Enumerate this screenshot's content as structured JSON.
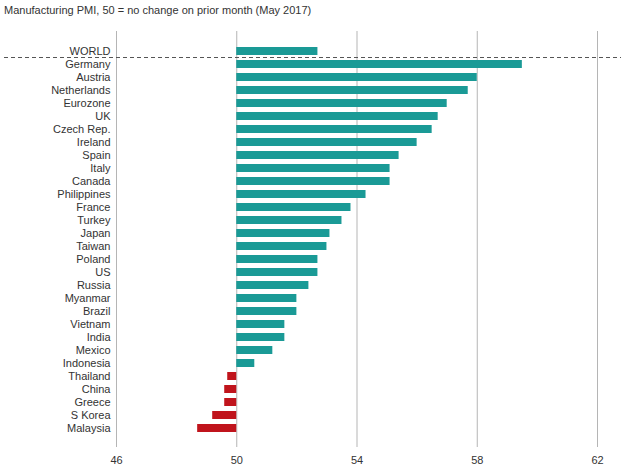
{
  "chart_data": {
    "type": "bar",
    "orientation": "horizontal",
    "title": "Manufacturing PMI, 50 = no change on prior month (May 2017)",
    "categories": [
      "WORLD",
      "Germany",
      "Austria",
      "Netherlands",
      "Eurozone",
      "UK",
      "Czech Rep.",
      "Ireland",
      "Spain",
      "Italy",
      "Canada",
      "Philippines",
      "France",
      "Turkey",
      "Japan",
      "Taiwan",
      "Poland",
      "US",
      "Russia",
      "Myanmar",
      "Brazil",
      "Vietnam",
      "India",
      "Mexico",
      "Indonesia",
      "Thailand",
      "China",
      "Greece",
      "S Korea",
      "Malaysia"
    ],
    "values": [
      52.7,
      59.5,
      58.0,
      57.7,
      57.0,
      56.7,
      56.5,
      56.0,
      55.4,
      55.1,
      55.1,
      54.3,
      53.8,
      53.5,
      53.1,
      53.0,
      52.7,
      52.7,
      52.4,
      52.0,
      52.0,
      51.6,
      51.6,
      51.2,
      50.6,
      49.7,
      49.6,
      49.6,
      49.2,
      48.7
    ],
    "baseline": 50,
    "colors": [
      "#1a9a96",
      "#1a9a96",
      "#1a9a96",
      "#1a9a96",
      "#1a9a96",
      "#1a9a96",
      "#1a9a96",
      "#1a9a96",
      "#1a9a96",
      "#1a9a96",
      "#1a9a96",
      "#1a9a96",
      "#1a9a96",
      "#1a9a96",
      "#1a9a96",
      "#1a9a96",
      "#1a9a96",
      "#1a9a96",
      "#1a9a96",
      "#1a9a96",
      "#1a9a96",
      "#1a9a96",
      "#1a9a96",
      "#1a9a96",
      "#1a9a96",
      "#c0141c",
      "#c0141c",
      "#c0141c",
      "#c0141c",
      "#c0141c"
    ],
    "xlim": [
      46,
      62
    ],
    "xticks": [
      46,
      50,
      54,
      58,
      62
    ],
    "grid": true
  }
}
